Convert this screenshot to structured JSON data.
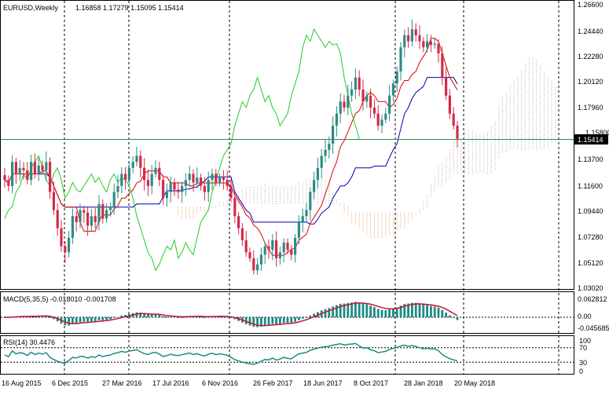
{
  "window": {
    "title": "EURUSD,Weekly",
    "ohlc_text": "1.16858 1.17279 1.15095 1.15414"
  },
  "price_panel": {
    "current_price": "1.15414",
    "y_ticks": [
      "1.26600",
      "1.24440",
      "1.22280",
      "1.20120",
      "1.17960",
      "1.15800",
      "1.13700",
      "1.11600",
      "1.09440",
      "1.07280",
      "1.05120",
      "1.03020"
    ]
  },
  "macd_panel": {
    "label": "MACD(5,35,5) -0.018010 -0.001708",
    "y_ticks": [
      "0.062812",
      "0.00",
      "-0.045685"
    ]
  },
  "rsi_panel": {
    "label": "RSI(14) 30.4476",
    "y_ticks": [
      "100",
      "70",
      "30",
      "0"
    ]
  },
  "x_axis": {
    "labels": [
      "16 Aug 2015",
      "6 Dec 2015",
      "27 Mar 2016",
      "17 Jul 2016",
      "6 Nov 2016",
      "26 Feb 2017",
      "18 Jun 2017",
      "8 Oct 2017",
      "28 Jan 2018",
      "20 May 2018"
    ]
  },
  "colors": {
    "bull": "#2e8b85",
    "bear": "#d42a4a",
    "tenkan": "#e00000",
    "kijun": "#0000b0",
    "chikou": "#22cc22",
    "cloud_a": "#b89ab8",
    "cloud_b": "#e8883a",
    "macd_hist": "#1a8c84",
    "macd_signal": "#cc1133",
    "rsi_line": "#1a8c84",
    "price_line": "#2e8b57"
  },
  "chart_data": {
    "type": "candlestick",
    "symbol": "EURUSD",
    "timeframe": "Weekly",
    "last": {
      "open": 1.16858,
      "high": 1.17279,
      "low": 1.15095,
      "close": 1.15414
    },
    "ylim": [
      1.0302,
      1.266
    ],
    "x_labels": [
      "16 Aug 2015",
      "6 Dec 2015",
      "27 Mar 2016",
      "17 Jul 2016",
      "6 Nov 2016",
      "26 Feb 2017",
      "18 Jun 2017",
      "8 Oct 2017",
      "28 Jan 2018",
      "20 May 2018"
    ],
    "closes": [
      1.12,
      1.115,
      1.135,
      1.125,
      1.13,
      1.128,
      1.12,
      1.135,
      1.125,
      1.132,
      1.128,
      1.135,
      1.11,
      1.095,
      1.08,
      1.065,
      1.06,
      1.072,
      1.09,
      1.085,
      1.095,
      1.093,
      1.082,
      1.09,
      1.085,
      1.1,
      1.088,
      1.095,
      1.098,
      1.11,
      1.115,
      1.125,
      1.12,
      1.13,
      1.135,
      1.14,
      1.13,
      1.12,
      1.115,
      1.125,
      1.13,
      1.12,
      1.105,
      1.11,
      1.118,
      1.112,
      1.11,
      1.115,
      1.12,
      1.125,
      1.118,
      1.122,
      1.115,
      1.11,
      1.12,
      1.125,
      1.118,
      1.122,
      1.12,
      1.115,
      1.105,
      1.09,
      1.08,
      1.07,
      1.06,
      1.055,
      1.045,
      1.05,
      1.058,
      1.065,
      1.062,
      1.07,
      1.055,
      1.06,
      1.068,
      1.062,
      1.058,
      1.072,
      1.085,
      1.09,
      1.095,
      1.11,
      1.12,
      1.13,
      1.14,
      1.145,
      1.15,
      1.165,
      1.175,
      1.185,
      1.18,
      1.19,
      1.195,
      1.205,
      1.195,
      1.185,
      1.19,
      1.18,
      1.175,
      1.165,
      1.17,
      1.175,
      1.19,
      1.2,
      1.21,
      1.23,
      1.24,
      1.235,
      1.245,
      1.24,
      1.235,
      1.23,
      1.235,
      1.232,
      1.233,
      1.225,
      1.205,
      1.19,
      1.175,
      1.165,
      1.1541
    ],
    "rsi_levels": [
      70,
      30
    ],
    "macd": {
      "value": -0.01801,
      "signal": -0.001708
    }
  }
}
